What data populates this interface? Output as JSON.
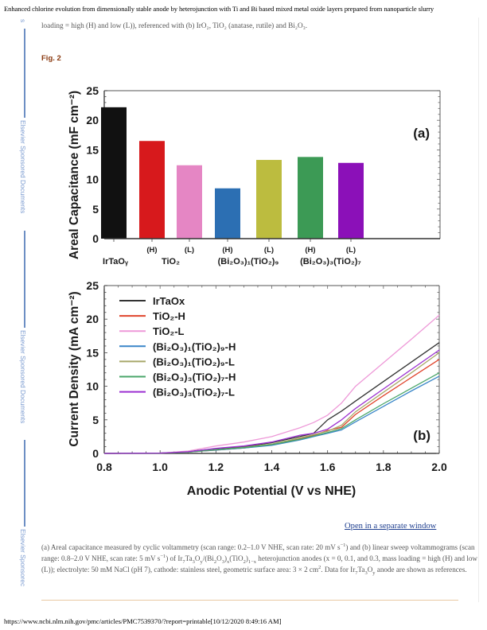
{
  "document": {
    "title": "Enhanced chlorine evolution from dimensionally stable anode by heterojunction with Ti and Bi based mixed metal oxide layers prepared from nanoparticle slurry",
    "intro_text": "loading = high (H) and low (L)), referenced with (b) IrO₂, TiO₂ (anatase, rutile) and Bi₂O₃.",
    "figure_label": "Fig. 2",
    "open_link": "Open in a separate window",
    "caption": {
      "part1": "(a) Areal capacitance measured by cyclic voltammetry (scan range: 0.2–1.0 V NHE, scan rate: 20 mV s",
      "sup1": "−1",
      "part2": ") and (b) linear sweep voltammograms (scan range: 0.8–2.0 V NHE, scan rate: 5 mV s",
      "sup2": "−1",
      "part3": ") of Ir",
      "sub_a": "7",
      "part4": "Ta",
      "sub_b": "3",
      "part5": "O",
      "sub_c": "y",
      "part6": "/(Bi",
      "sub_d": "2",
      "part7": "O",
      "sub_e": "3",
      "part8": ")",
      "sub_f": "x",
      "part9": "(TiO",
      "sub_g": "2",
      "part10": ")",
      "sub_h": "1−x",
      "part11": " heterojunction anodes (x = 0, 0.1, and 0.3, mass loading = high (H) and low (L)); electrolyte: 50 mM NaCl (pH 7), cathode: stainless steel, geometric surface area: 3 × 2 cm",
      "sup3": "2",
      "part12": ". Data for Ir",
      "sub_i": "7",
      "part13": "Ta",
      "sub_j": "3",
      "part14": "O",
      "sub_k": "y",
      "part15": " anode are shown as references."
    },
    "footer": "https://www.ncbi.nlm.nih.gov/pmc/articles/PMC7539370/?report=printable[10/12/2020 8:49:16 AM]"
  },
  "sidebar": {
    "top_fragment": "s",
    "label_1": "Elsevier Sponsored Documents",
    "label_2": "Elsevier Sponsored Documents",
    "label_3": "Elsevier Sponsorec"
  },
  "chart_data": [
    {
      "type": "bar",
      "panel_label": "(a)",
      "title": "",
      "ylabel": "Areal Capacitance (mF cm⁻²)",
      "xlabel": "",
      "ylim": [
        0,
        25
      ],
      "yticks": [
        0,
        5,
        10,
        15,
        20,
        25
      ],
      "grid": false,
      "categories": [
        {
          "top": "",
          "bottom": "IrTaOᵧ"
        },
        {
          "top": "(H)",
          "bottom": ""
        },
        {
          "top": "(L)",
          "bottom": ""
        },
        {
          "top": "(H)",
          "bottom": ""
        },
        {
          "top": "(L)",
          "bottom": ""
        },
        {
          "top": "(H)",
          "bottom": ""
        },
        {
          "top": "(L)",
          "bottom": ""
        }
      ],
      "group_labels": [
        {
          "label": "TiO₂",
          "spans": [
            1,
            2
          ]
        },
        {
          "label": "(Bi₂O₃)₁(TiO₂)₉",
          "spans": [
            3,
            4
          ]
        },
        {
          "label": "(Bi₂O₃)₃(TiO₂)₇",
          "spans": [
            5,
            6
          ]
        }
      ],
      "values": [
        22.2,
        16.5,
        12.4,
        8.5,
        13.3,
        13.8,
        12.8
      ],
      "colors": [
        "#111111",
        "#d7191c",
        "#e586c4",
        "#2c6fb3",
        "#bcbc3f",
        "#3c9a55",
        "#8b10b8"
      ]
    },
    {
      "type": "line",
      "panel_label": "(b)",
      "title": "",
      "xlabel": "Anodic Potential (V vs NHE)",
      "ylabel": "Current Density (mA cm⁻²)",
      "xlim": [
        0.8,
        2.0
      ],
      "ylim": [
        0,
        25
      ],
      "xticks": [
        "0.8",
        "1.0",
        "1.2",
        "1.4",
        "1.6",
        "1.8",
        "2.0"
      ],
      "yticks": [
        "0",
        "5",
        "10",
        "15",
        "20",
        "25"
      ],
      "grid": false,
      "legend_position": "top-left",
      "x": [
        0.8,
        1.0,
        1.1,
        1.2,
        1.3,
        1.4,
        1.5,
        1.55,
        1.6,
        1.65,
        1.7,
        1.8,
        1.9,
        2.0
      ],
      "series": [
        {
          "name": "IrTaOx",
          "color": "#333333",
          "values": [
            0,
            0.05,
            0.3,
            0.7,
            1.0,
            1.6,
            2.5,
            3.0,
            5.0,
            6.3,
            7.8,
            10.7,
            13.6,
            16.5
          ]
        },
        {
          "name": "TiO₂-H",
          "color": "#e0442c",
          "values": [
            0,
            0.05,
            0.2,
            0.5,
            0.8,
            1.3,
            2.2,
            2.7,
            3.4,
            3.9,
            5.8,
            8.6,
            11.3,
            14.0
          ]
        },
        {
          "name": "TiO₂-L",
          "color": "#ee99d8",
          "values": [
            0,
            0.05,
            0.35,
            1.1,
            1.7,
            2.5,
            3.8,
            4.6,
            5.7,
            7.5,
            10.0,
            13.5,
            17.0,
            20.6
          ]
        },
        {
          "name": "(Bi₂O₃)₁(TiO₂)₉-H",
          "color": "#3a86c8",
          "values": [
            0,
            0.05,
            0.2,
            0.5,
            0.8,
            1.2,
            2.0,
            2.5,
            3.0,
            3.5,
            4.7,
            7.0,
            9.3,
            11.5
          ]
        },
        {
          "name": "(Bi₂O₃)₁(TiO₂)₉-L",
          "color": "#a8a86a",
          "values": [
            0,
            0.05,
            0.2,
            0.55,
            0.9,
            1.4,
            2.3,
            2.8,
            3.3,
            4.2,
            6.2,
            9.1,
            12.0,
            15.0
          ]
        },
        {
          "name": "(Bi₂O₃)₃(TiO₂)₇-H",
          "color": "#4aa66a",
          "values": [
            0,
            0.05,
            0.2,
            0.55,
            0.85,
            1.3,
            2.1,
            2.6,
            3.1,
            3.7,
            5.0,
            7.4,
            9.7,
            12.0
          ]
        },
        {
          "name": "(Bi₂O₃)₃(TiO₂)₇-L",
          "color": "#9b2fd0",
          "values": [
            0,
            0.05,
            0.25,
            0.75,
            1.1,
            1.7,
            2.7,
            3.0,
            3.6,
            5.0,
            6.7,
            9.6,
            12.5,
            15.4
          ]
        }
      ]
    }
  ]
}
